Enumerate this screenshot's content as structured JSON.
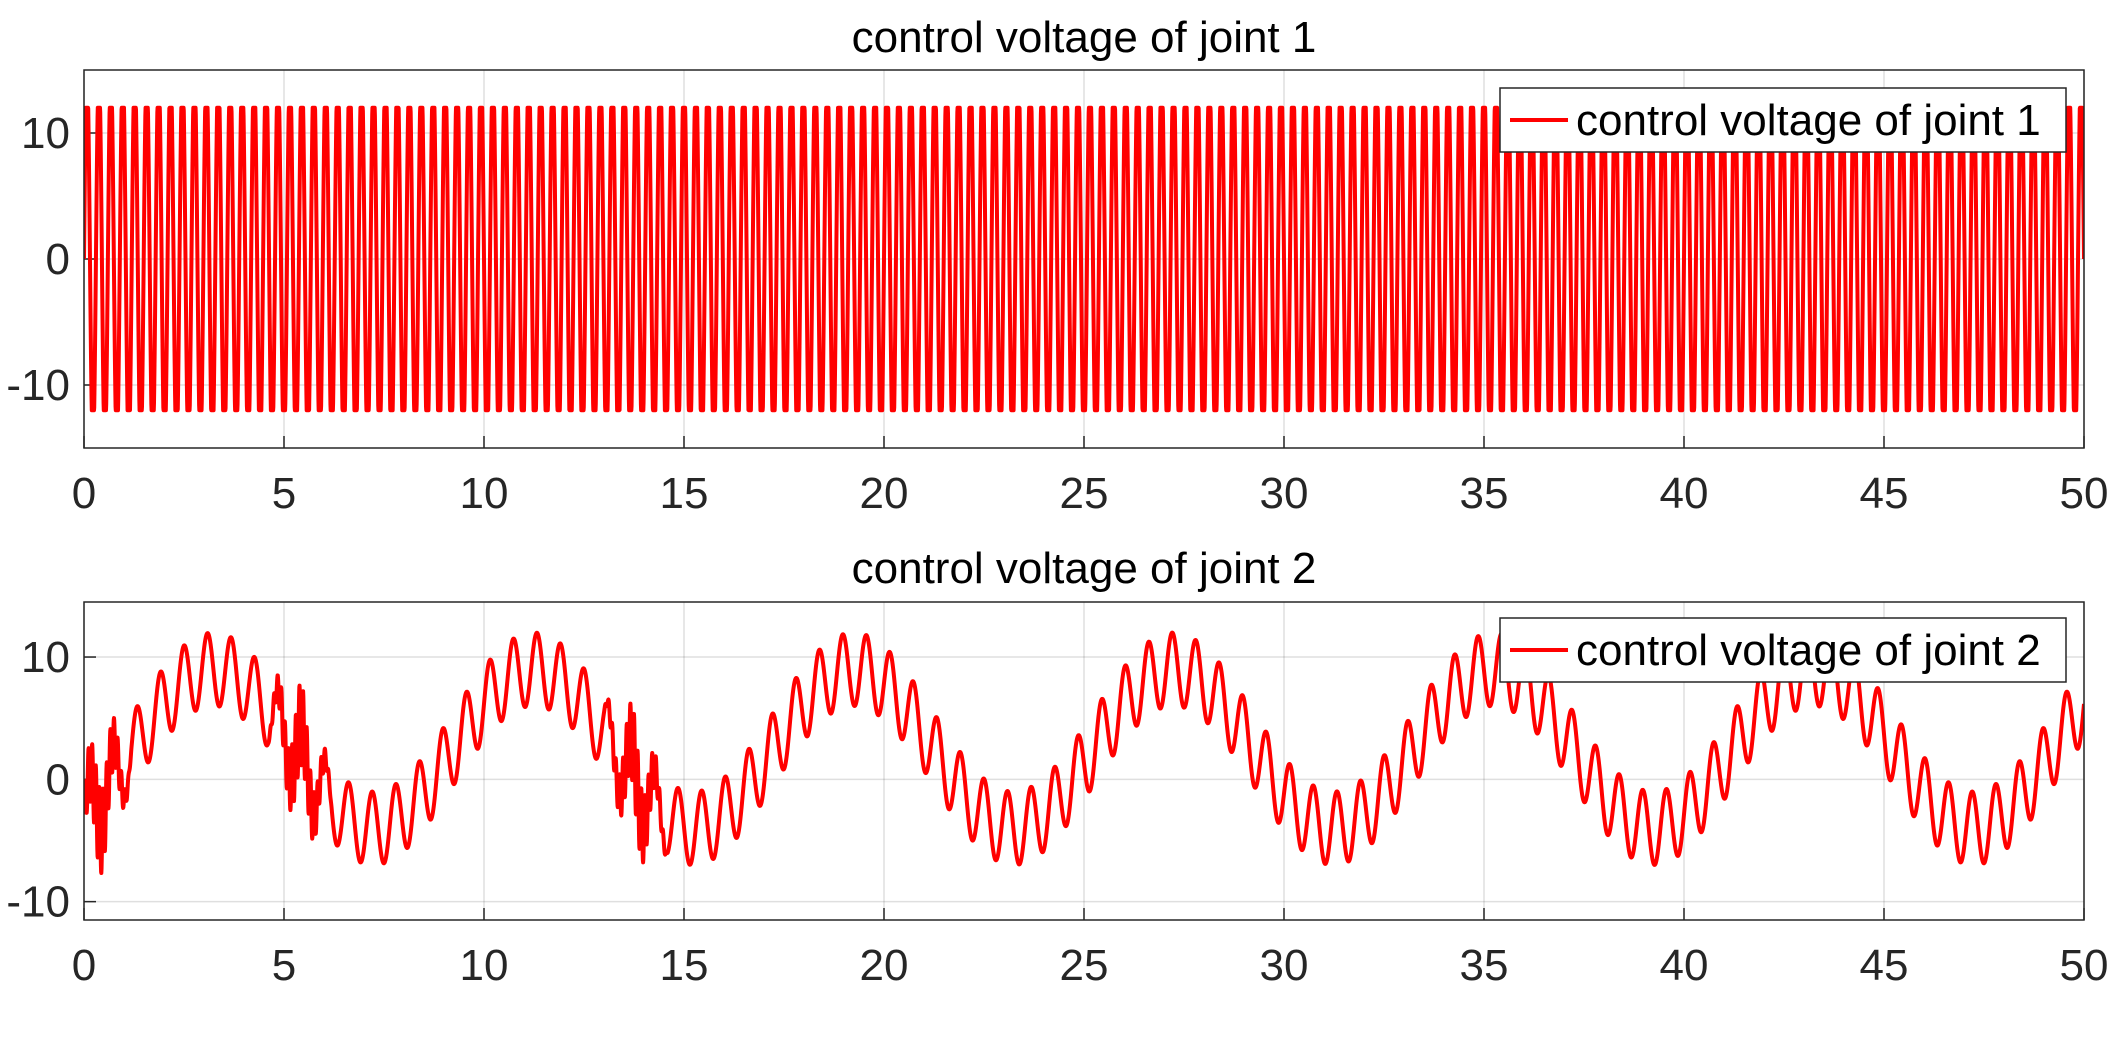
{
  "chart_data": [
    {
      "type": "line",
      "title": "control voltage of joint 1",
      "xlabel": "",
      "ylabel": "",
      "xlim": [
        0,
        50
      ],
      "ylim": [
        -15,
        15
      ],
      "xticks": [
        0,
        5,
        10,
        15,
        20,
        25,
        30,
        35,
        40,
        45,
        50
      ],
      "yticks": [
        -10,
        0,
        10
      ],
      "grid": true,
      "legend_position": "top-right",
      "series": [
        {
          "name": "control voltage of joint 1",
          "color": "#ff0000",
          "description": "saturated square-like oscillation between -12 and 12, about 3.4 cycles per second",
          "amplitude": 12,
          "frequency": 3.35,
          "saturation": 12
        }
      ]
    },
    {
      "type": "line",
      "title": "control voltage of joint 2",
      "xlabel": "",
      "ylabel": "",
      "xlim": [
        0,
        50
      ],
      "ylim": [
        -11.5,
        14.5
      ],
      "xticks": [
        0,
        5,
        10,
        15,
        20,
        25,
        30,
        35,
        40,
        45,
        50
      ],
      "yticks": [
        -10,
        0,
        10
      ],
      "grid": true,
      "legend_position": "top-right",
      "series": [
        {
          "name": "control voltage of joint 2",
          "color": "#ff0000",
          "offset": 2.5,
          "slow_amplitude": 6.5,
          "slow_period": 8,
          "fast_amplitude": 3,
          "fast_frequency": 1.7,
          "saturation": 12
        }
      ]
    }
  ]
}
